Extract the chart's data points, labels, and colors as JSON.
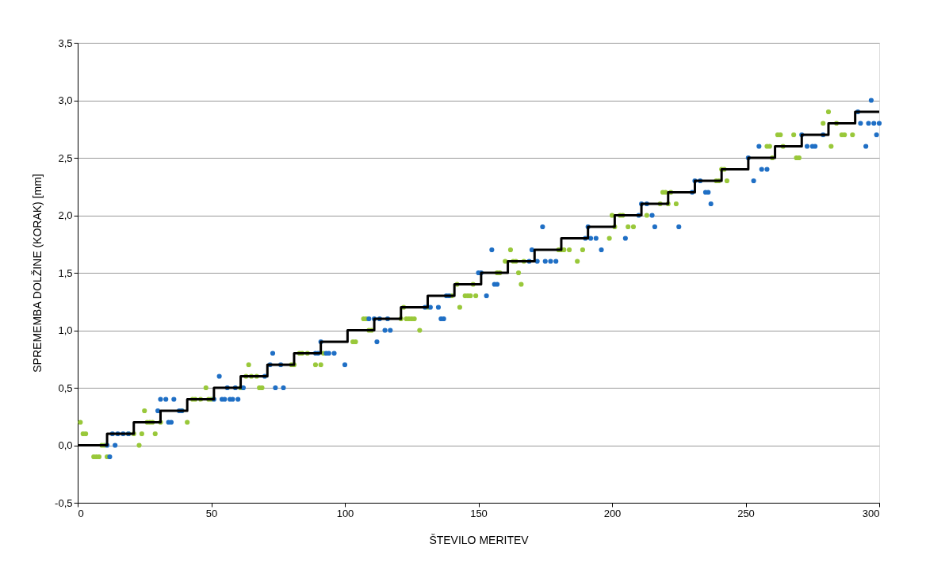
{
  "chart_data": {
    "type": "scatter",
    "xlabel": "ŠTEVILO MERITEV",
    "ylabel": "SPREMEMBA DOLŽINE (KORAK) [mm]",
    "xlim": [
      0,
      300
    ],
    "xticks": [
      0,
      50,
      100,
      150,
      200,
      250,
      300
    ],
    "ylim": [
      -0.5,
      3.5
    ],
    "yticks": [
      {
        "value": -0.5,
        "label": "-0,5"
      },
      {
        "value": 0,
        "label": "0,0"
      },
      {
        "value": 0.5,
        "label": "0,5"
      },
      {
        "value": 1,
        "label": "1,0"
      },
      {
        "value": 1.5,
        "label": "1,5"
      },
      {
        "value": 2,
        "label": "2,0"
      },
      {
        "value": 2.5,
        "label": "2,5"
      },
      {
        "value": 3,
        "label": "3,0"
      },
      {
        "value": 3.5,
        "label": "3,5"
      }
    ],
    "grid": "y",
    "marker": "circle",
    "series": [
      {
        "type": "scatter",
        "color": "#99c83a",
        "x": [
          1,
          2,
          3,
          6,
          7,
          8,
          9,
          10,
          11,
          19,
          21,
          23,
          24,
          25,
          26,
          27,
          28,
          29,
          31,
          39,
          41,
          43,
          44,
          46,
          48,
          49,
          50,
          61,
          63,
          64,
          65,
          67,
          68,
          69,
          80,
          81,
          83,
          84,
          86,
          89,
          91,
          92,
          103,
          104,
          107,
          108,
          109,
          110,
          121,
          122,
          123,
          124,
          125,
          126,
          128,
          131,
          140,
          142,
          143,
          145,
          146,
          147,
          148,
          149,
          157,
          158,
          160,
          162,
          163,
          164,
          165,
          166,
          167,
          180,
          181,
          182,
          184,
          187,
          189,
          199,
          200,
          201,
          203,
          204,
          206,
          208,
          213,
          218,
          219,
          220,
          221,
          222,
          224,
          239,
          240,
          241,
          242,
          243,
          258,
          259,
          260,
          262,
          263,
          264,
          268,
          269,
          270,
          279,
          281,
          282,
          284,
          286,
          287,
          290
        ],
        "values": [
          0.2,
          0.1,
          0.1,
          -0.1,
          -0.1,
          -0.1,
          0.0,
          0.0,
          -0.1,
          0.1,
          0.1,
          0.0,
          0.1,
          0.3,
          0.2,
          0.2,
          0.2,
          0.1,
          0.2,
          0.3,
          0.2,
          0.4,
          0.4,
          0.4,
          0.5,
          0.4,
          0.4,
          0.5,
          0.6,
          0.7,
          0.6,
          0.6,
          0.5,
          0.5,
          0.7,
          0.7,
          0.8,
          0.8,
          0.8,
          0.7,
          0.7,
          0.8,
          0.9,
          0.9,
          1.1,
          1.1,
          1.0,
          1.0,
          1.1,
          1.2,
          1.1,
          1.1,
          1.1,
          1.1,
          1.0,
          1.2,
          1.3,
          1.4,
          1.2,
          1.3,
          1.3,
          1.3,
          1.4,
          1.3,
          1.5,
          1.5,
          1.6,
          1.7,
          1.6,
          1.6,
          1.5,
          1.4,
          1.6,
          1.7,
          1.7,
          1.7,
          1.7,
          1.6,
          1.7,
          1.8,
          2.0,
          1.9,
          2.0,
          2.0,
          1.9,
          1.9,
          2.0,
          2.1,
          2.2,
          2.2,
          2.1,
          2.2,
          2.1,
          2.3,
          2.3,
          2.4,
          2.4,
          2.3,
          2.6,
          2.6,
          2.5,
          2.7,
          2.7,
          2.6,
          2.7,
          2.5,
          2.5,
          2.8,
          2.9,
          2.6,
          2.8,
          2.7,
          2.7,
          2.7
        ]
      },
      {
        "type": "scatter",
        "color": "#1f6fc5",
        "x": [
          11,
          12,
          13,
          14,
          15,
          17,
          19,
          30,
          31,
          33,
          34,
          35,
          36,
          38,
          39,
          51,
          53,
          54,
          55,
          56,
          57,
          58,
          59,
          60,
          62,
          70,
          72,
          73,
          74,
          76,
          77,
          89,
          90,
          91,
          93,
          94,
          96,
          100,
          109,
          111,
          112,
          113,
          115,
          116,
          117,
          130,
          132,
          135,
          136,
          137,
          138,
          139,
          150,
          151,
          153,
          155,
          156,
          157,
          169,
          170,
          172,
          174,
          175,
          177,
          179,
          190,
          191,
          192,
          194,
          196,
          205,
          210,
          211,
          213,
          215,
          216,
          225,
          230,
          231,
          233,
          235,
          236,
          237,
          251,
          253,
          255,
          256,
          258,
          271,
          273,
          275,
          276,
          279,
          292,
          293,
          295,
          296,
          297,
          298,
          299,
          300
        ],
        "values": [
          0.0,
          -0.1,
          0.1,
          0.0,
          0.1,
          0.1,
          0.1,
          0.3,
          0.4,
          0.4,
          0.2,
          0.2,
          0.4,
          0.3,
          0.3,
          0.4,
          0.6,
          0.4,
          0.4,
          0.5,
          0.4,
          0.4,
          0.5,
          0.4,
          0.5,
          0.6,
          0.7,
          0.8,
          0.5,
          0.7,
          0.5,
          0.8,
          0.8,
          0.9,
          0.8,
          0.8,
          0.8,
          0.7,
          1.1,
          1.1,
          0.9,
          1.1,
          1.0,
          1.1,
          1.0,
          1.2,
          1.2,
          1.2,
          1.1,
          1.1,
          1.3,
          1.3,
          1.5,
          1.5,
          1.3,
          1.7,
          1.4,
          1.4,
          1.6,
          1.7,
          1.6,
          1.9,
          1.6,
          1.6,
          1.6,
          1.8,
          1.9,
          1.8,
          1.8,
          1.7,
          1.8,
          2.0,
          2.1,
          2.1,
          2.0,
          1.9,
          1.9,
          2.2,
          2.3,
          2.3,
          2.2,
          2.2,
          2.1,
          2.5,
          2.3,
          2.6,
          2.4,
          2.4,
          2.7,
          2.6,
          2.6,
          2.6,
          2.7,
          2.9,
          2.8,
          2.6,
          2.8,
          3.0,
          2.8,
          2.7,
          2.8
        ]
      },
      {
        "type": "step",
        "color": "#000000",
        "line_style": "solid",
        "marker": "none",
        "x": [
          0,
          11,
          21,
          31,
          41,
          51,
          61,
          71,
          81,
          91,
          101,
          111,
          121,
          131,
          141,
          151,
          161,
          171,
          181,
          191,
          201,
          211,
          221,
          231,
          241,
          251,
          261,
          271,
          281,
          291,
          300
        ],
        "values": [
          0.0,
          0.1,
          0.2,
          0.3,
          0.4,
          0.5,
          0.6,
          0.7,
          0.8,
          0.9,
          1.0,
          1.1,
          1.2,
          1.3,
          1.4,
          1.5,
          1.6,
          1.7,
          1.8,
          1.9,
          2.0,
          2.1,
          2.2,
          2.3,
          2.4,
          2.5,
          2.6,
          2.7,
          2.8,
          2.9,
          2.9
        ]
      }
    ]
  }
}
